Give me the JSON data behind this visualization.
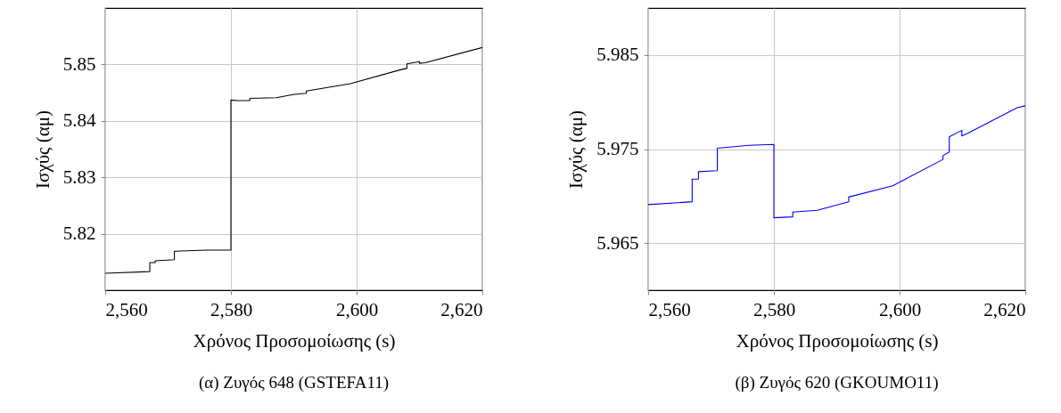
{
  "chart_data": [
    {
      "type": "line",
      "title": "(α) Ζυγός 648 (GSTEFA11)",
      "xlabel": "Χρόνος Προσομοίωσης (s)",
      "ylabel": "Ισχύς (αμ)",
      "xlim": [
        2560,
        2620
      ],
      "ylim": [
        5.81,
        5.86
      ],
      "xticks": [
        {
          "value": 2560,
          "label": "2,560"
        },
        {
          "value": 2580,
          "label": "2,580"
        },
        {
          "value": 2600,
          "label": "2,600"
        },
        {
          "value": 2620,
          "label": "2,620"
        }
      ],
      "yticks": [
        5.82,
        5.83,
        5.84,
        5.85
      ],
      "grid": true,
      "series": [
        {
          "color": "#000000",
          "x": [
            2560,
            2567.1,
            2567.1,
            2567.95,
            2567.95,
            2571.0,
            2571.0,
            2576.1,
            2580.0,
            2580.0,
            2581.1,
            2583.0,
            2583.0,
            2587.2,
            2590.1,
            2592.0,
            2592.0,
            2599.0,
            2607.1,
            2608.0,
            2608.0,
            2610.0,
            2610.0,
            2610.9,
            2620.0
          ],
          "values": [
            5.813,
            5.8133,
            5.8149,
            5.8149,
            5.8152,
            5.8154,
            5.8169,
            5.8171,
            5.8171,
            5.8437,
            5.8436,
            5.8436,
            5.844,
            5.8441,
            5.8447,
            5.8449,
            5.8453,
            5.8466,
            5.8491,
            5.8493,
            5.8501,
            5.8505,
            5.8502,
            5.8503,
            5.853
          ]
        }
      ]
    },
    {
      "type": "line",
      "title": "(β) Ζυγός 620 (GKOUMO11)",
      "xlabel": "Χρόνος Προσομοίωσης (s)",
      "ylabel": "Ισχύς (αμ)",
      "xlim": [
        2560,
        2620
      ],
      "ylim": [
        5.96,
        5.99
      ],
      "xticks": [
        {
          "value": 2560,
          "label": "2,560"
        },
        {
          "value": 2580,
          "label": "2,580"
        },
        {
          "value": 2600,
          "label": "2,600"
        },
        {
          "value": 2620,
          "label": "2,620"
        }
      ],
      "yticks": [
        5.965,
        5.975,
        5.985
      ],
      "grid": true,
      "series": [
        {
          "color": "#0000ff",
          "x": [
            2560,
            2567.0,
            2567.0,
            2568.0,
            2568.0,
            2571.0,
            2571.0,
            2576.0,
            2580.0,
            2580.0,
            2583.0,
            2583.0,
            2586.9,
            2591.9,
            2591.9,
            2598.9,
            2606.9,
            2606.9,
            2607.9,
            2607.9,
            2609.9,
            2609.9,
            2610.9,
            2618.7,
            2620.0
          ],
          "values": [
            5.9691,
            5.9694,
            5.9718,
            5.9718,
            5.9726,
            5.9727,
            5.9751,
            5.9754,
            5.9755,
            5.9677,
            5.9678,
            5.9683,
            5.9685,
            5.9694,
            5.9699,
            5.9711,
            5.9739,
            5.9743,
            5.9747,
            5.9763,
            5.977,
            5.9764,
            5.9767,
            5.9794,
            5.9796
          ]
        }
      ]
    }
  ]
}
